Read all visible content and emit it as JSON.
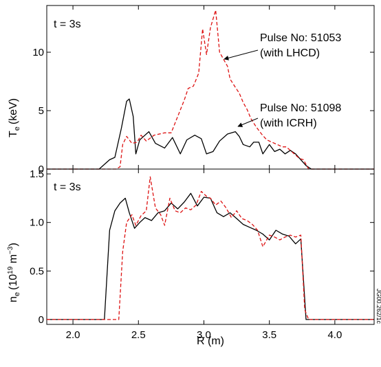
{
  "figure": {
    "stamp": "JG00.262/1c",
    "xlabel": "R (m)"
  },
  "chart_data": [
    {
      "type": "line",
      "panel": "top",
      "time_label": "t = 3s",
      "ylabel_main": "T",
      "ylabel_sub": "e",
      "ylabel_unit": "(keV)",
      "xlim": [
        1.8,
        4.3
      ],
      "ylim": [
        0,
        14
      ],
      "xticks": [
        2.0,
        2.5,
        3.0,
        3.5,
        4.0
      ],
      "xtick_labels": [
        "",
        "",
        "",
        "",
        ""
      ],
      "yticks": [
        0,
        5,
        10
      ],
      "ytick_labels": [
        "0",
        "5",
        "10"
      ],
      "annotations": [
        {
          "line1": "Pulse No: 51053",
          "line2": "(with LHCD)"
        },
        {
          "line1": "Pulse No: 51098",
          "line2": "(with ICRH)"
        }
      ],
      "series": [
        {
          "name": "51098",
          "color": "#000000",
          "dash": "solid",
          "x": [
            1.8,
            2.2,
            2.28,
            2.32,
            2.37,
            2.41,
            2.43,
            2.46,
            2.48,
            2.51,
            2.55,
            2.58,
            2.63,
            2.7,
            2.76,
            2.82,
            2.87,
            2.93,
            2.98,
            3.02,
            3.07,
            3.12,
            3.18,
            3.24,
            3.27,
            3.3,
            3.35,
            3.38,
            3.42,
            3.45,
            3.5,
            3.54,
            3.58,
            3.62,
            3.66,
            3.7,
            3.74,
            3.78,
            3.82,
            4.3
          ],
          "y": [
            0,
            0,
            0.8,
            1.0,
            3.5,
            5.8,
            6.0,
            4.5,
            1.3,
            2.5,
            2.9,
            3.2,
            2.2,
            1.8,
            2.7,
            1.3,
            2.5,
            2.9,
            2.6,
            1.3,
            1.5,
            2.4,
            3.0,
            3.2,
            2.8,
            2.1,
            1.9,
            2.3,
            2.3,
            1.3,
            2.1,
            1.5,
            1.7,
            1.3,
            1.6,
            1.3,
            0.8,
            0.3,
            0,
            0
          ]
        },
        {
          "name": "51053",
          "color": "#dd1111",
          "dash": "dashed",
          "x": [
            1.8,
            2.33,
            2.36,
            2.38,
            2.41,
            2.45,
            2.49,
            2.52,
            2.56,
            2.62,
            2.7,
            2.75,
            2.8,
            2.85,
            2.88,
            2.92,
            2.96,
            2.99,
            3.02,
            3.05,
            3.09,
            3.12,
            3.15,
            3.18,
            3.2,
            3.24,
            3.27,
            3.3,
            3.33,
            3.36,
            3.4,
            3.44,
            3.48,
            3.52,
            3.56,
            3.6,
            3.63,
            3.66,
            3.7,
            3.73,
            3.76,
            3.8,
            4.3
          ],
          "y": [
            0,
            0,
            0.2,
            2.1,
            2.8,
            2.2,
            2.3,
            2.9,
            2.4,
            2.9,
            3.1,
            3.1,
            4.5,
            5.9,
            6.9,
            7.1,
            8.2,
            12.0,
            9.8,
            12.1,
            13.6,
            10.0,
            9.4,
            8.8,
            7.7,
            7.0,
            6.5,
            5.7,
            5.1,
            4.3,
            3.6,
            3.0,
            2.5,
            2.3,
            2.1,
            1.9,
            1.9,
            1.6,
            1.2,
            0.9,
            0.8,
            0,
            0
          ]
        }
      ]
    },
    {
      "type": "line",
      "panel": "bottom",
      "time_label": "t = 3s",
      "ylabel_main": "n",
      "ylabel_sub": "e",
      "ylabel_unit_pre": "(10",
      "ylabel_unit_sup": "19",
      "ylabel_unit_mid": " m",
      "ylabel_unit_sup2": "−3",
      "ylabel_unit_post": ")",
      "xlim": [
        1.8,
        4.3
      ],
      "ylim": [
        -0.05,
        1.55
      ],
      "xticks": [
        2.0,
        2.5,
        3.0,
        3.5,
        4.0
      ],
      "xtick_labels": [
        "2.0",
        "2.5",
        "3.0",
        "3.5",
        "4.0"
      ],
      "yticks": [
        0,
        0.5,
        1.0,
        1.5
      ],
      "ytick_labels": [
        "0",
        "0.5",
        "1.0",
        "1.5"
      ],
      "series": [
        {
          "name": "51098",
          "color": "#000000",
          "dash": "solid",
          "x": [
            1.8,
            2.24,
            2.28,
            2.32,
            2.36,
            2.4,
            2.43,
            2.47,
            2.51,
            2.55,
            2.6,
            2.65,
            2.7,
            2.75,
            2.8,
            2.85,
            2.9,
            2.95,
            3.0,
            3.05,
            3.1,
            3.15,
            3.2,
            3.25,
            3.3,
            3.35,
            3.4,
            3.45,
            3.5,
            3.55,
            3.6,
            3.65,
            3.7,
            3.74,
            3.78,
            3.82,
            4.3
          ],
          "y": [
            0,
            0,
            0.92,
            1.12,
            1.2,
            1.25,
            1.1,
            0.94,
            1.0,
            1.05,
            1.02,
            1.1,
            1.12,
            1.2,
            1.14,
            1.21,
            1.3,
            1.17,
            1.26,
            1.25,
            1.1,
            1.06,
            1.1,
            1.04,
            0.98,
            0.95,
            0.92,
            0.88,
            0.82,
            0.92,
            0.88,
            0.86,
            0.78,
            0.83,
            0,
            0,
            0
          ]
        },
        {
          "name": "51053",
          "color": "#dd1111",
          "dash": "dashed",
          "x": [
            1.8,
            2.35,
            2.38,
            2.41,
            2.45,
            2.48,
            2.52,
            2.56,
            2.59,
            2.63,
            2.67,
            2.7,
            2.74,
            2.78,
            2.82,
            2.86,
            2.9,
            2.94,
            2.98,
            3.02,
            3.05,
            3.09,
            3.13,
            3.17,
            3.21,
            3.25,
            3.29,
            3.33,
            3.37,
            3.41,
            3.45,
            3.5,
            3.54,
            3.58,
            3.62,
            3.66,
            3.7,
            3.74,
            3.77,
            3.8,
            4.3
          ],
          "y": [
            0,
            0,
            0.7,
            1.0,
            1.08,
            0.97,
            1.07,
            1.12,
            1.47,
            1.15,
            1.08,
            0.97,
            1.25,
            1.12,
            1.1,
            1.15,
            1.13,
            1.18,
            1.32,
            1.27,
            1.25,
            1.18,
            1.22,
            1.15,
            1.05,
            1.12,
            1.04,
            1.02,
            0.98,
            0.92,
            0.75,
            0.87,
            0.85,
            0.82,
            0.85,
            0.87,
            0.85,
            0.87,
            0.1,
            0,
            0
          ]
        }
      ]
    }
  ]
}
